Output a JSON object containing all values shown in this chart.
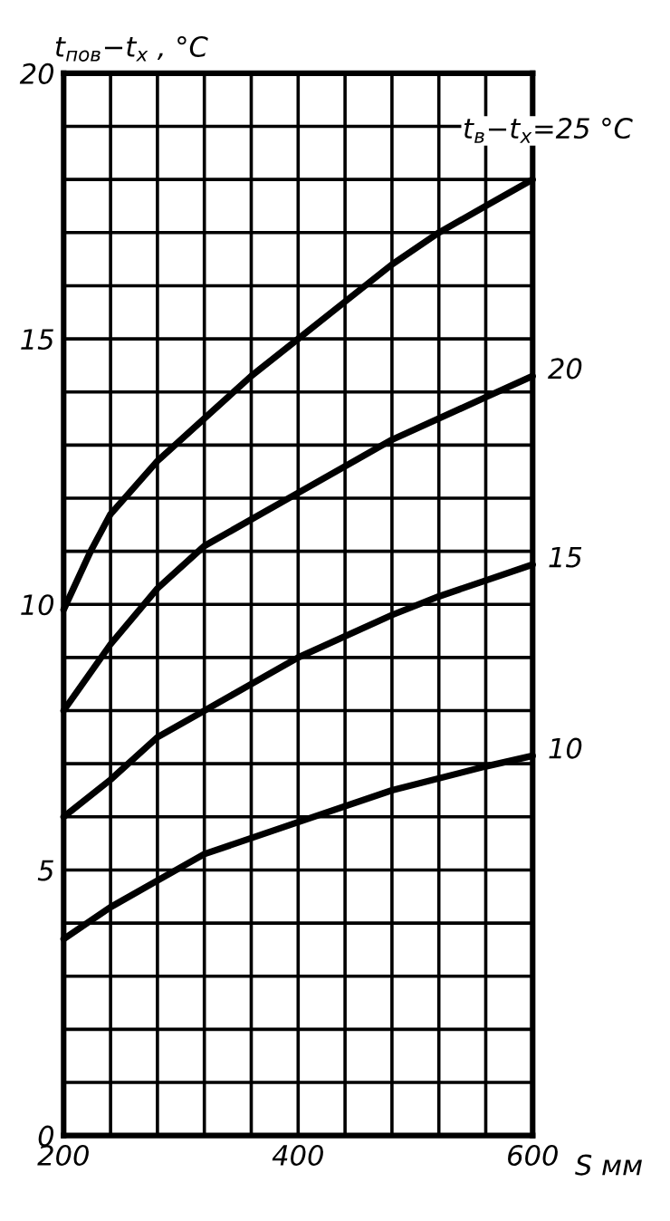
{
  "chart_data": {
    "type": "line",
    "xlabel": "S мм",
    "ylabel": "t$_{пов}$−t$_{x}$ , °C",
    "xlim": [
      200,
      600
    ],
    "ylim": [
      0,
      20
    ],
    "xticks": [
      200,
      {
        "value": 240,
        "label": null
      },
      {
        "value": 280,
        "label": null
      },
      {
        "value": 320,
        "label": null
      },
      {
        "value": 360,
        "label": null
      },
      400,
      {
        "value": 440,
        "label": null
      },
      {
        "value": 480,
        "label": null
      },
      {
        "value": 520,
        "label": null
      },
      {
        "value": 560,
        "label": null
      },
      600
    ],
    "yticks": [
      0,
      {
        "value": 1,
        "label": null
      },
      {
        "value": 2,
        "label": null
      },
      {
        "value": 3,
        "label": null
      },
      {
        "value": 4,
        "label": null
      },
      5,
      {
        "value": 6,
        "label": null
      },
      {
        "value": 7,
        "label": null
      },
      {
        "value": 8,
        "label": null
      },
      {
        "value": 9,
        "label": null
      },
      10,
      {
        "value": 11,
        "label": null
      },
      {
        "value": 12,
        "label": null
      },
      {
        "value": 13,
        "label": null
      },
      {
        "value": 14,
        "label": null
      },
      15,
      {
        "value": 16,
        "label": null
      },
      {
        "value": 17,
        "label": null
      },
      {
        "value": 18,
        "label": null
      },
      {
        "value": 19,
        "label": null
      },
      20
    ],
    "grid": true,
    "legend": false,
    "marker": "none",
    "line_style": "solid",
    "series": [
      {
        "name": "t$_{в}$−t$_{x}$=25 °C",
        "color": "#000000",
        "x": [
          200,
          223,
          240,
          280,
          320,
          360,
          400,
          440,
          480,
          520,
          560,
          600
        ],
        "values": [
          9.9,
          11,
          11.7,
          12.7,
          13.5,
          14.3,
          15,
          15.7,
          16.4,
          17,
          17.5,
          18
        ]
      },
      {
        "name": "20",
        "color": "#000000",
        "x": [
          200,
          240,
          280,
          320,
          400,
          480,
          560,
          600
        ],
        "values": [
          8,
          9.25,
          10.3,
          11.1,
          12.1,
          13.1,
          13.9,
          14.3
        ]
      },
      {
        "name": "15",
        "color": "#000000",
        "x": [
          200,
          240,
          280,
          320,
          400,
          480,
          520,
          560,
          600
        ],
        "values": [
          6,
          6.7,
          7.5,
          8,
          9,
          9.8,
          10.15,
          10.45,
          10.75
        ]
      },
      {
        "name": "10",
        "color": "#000000",
        "x": [
          200,
          240,
          280,
          320,
          400,
          480,
          560,
          600
        ],
        "values": [
          3.7,
          4.3,
          4.8,
          5.3,
          5.9,
          6.5,
          6.95,
          7.15
        ]
      }
    ]
  }
}
